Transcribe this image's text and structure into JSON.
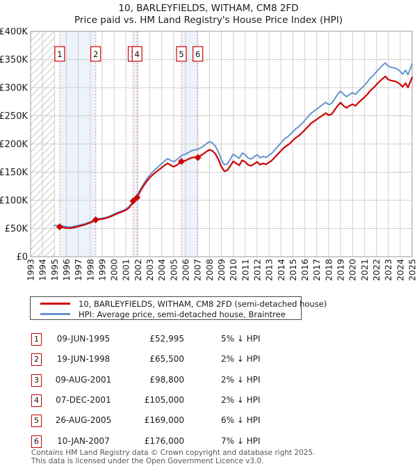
{
  "page": {
    "title": "10, BARLEYFIELDS, WITHAM, CM8 2FD",
    "subtitle": "Price paid vs. HM Land Registry's House Price Index (HPI)"
  },
  "colors": {
    "property_line": "#cc0000",
    "hpi_line": "#6694ce",
    "band_fill": "#edf2fb",
    "grid": "#cfcfcf",
    "plot_border": "#9a9a9a",
    "event_dash": "#e98585",
    "hatch": "#c9c9c9",
    "marker_box_border": "#cc0000"
  },
  "chart_data": {
    "type": "line",
    "title": "10, BARLEYFIELDS, WITHAM, CM8 2FD",
    "subtitle": "Price paid vs. HM Land Registry's House Price Index (HPI)",
    "x_axis": {
      "min": 1993,
      "max": 2025,
      "ticks": [
        1993,
        1994,
        1995,
        1996,
        1997,
        1998,
        1999,
        2000,
        2001,
        2002,
        2003,
        2004,
        2005,
        2006,
        2007,
        2008,
        2009,
        2010,
        2011,
        2012,
        2013,
        2014,
        2015,
        2016,
        2017,
        2018,
        2019,
        2020,
        2021,
        2022,
        2023,
        2024,
        2025
      ],
      "label_rotation": -90
    },
    "y_axis": {
      "min": 0,
      "max": 400,
      "unit": "thousand GBP",
      "tick_values": [
        0,
        50,
        100,
        150,
        200,
        250,
        300,
        350,
        400
      ],
      "tick_labels": [
        "£0",
        "£50K",
        "£100K",
        "£150K",
        "£200K",
        "£250K",
        "£300K",
        "£350K",
        "£400K"
      ]
    },
    "grid": true,
    "legend_position": "below-chart",
    "hatch_region": {
      "from": 1993,
      "to": 1995.05
    },
    "shaded_bands": [
      [
        1995.44,
        1998.46
      ],
      [
        2001.6,
        2001.93
      ],
      [
        2005.65,
        2007.03
      ]
    ],
    "event_lines": [
      1995.44,
      1998.46,
      2001.6,
      2001.93,
      2005.65,
      2007.03
    ],
    "sale_markers": [
      {
        "num": "1",
        "year": 1995.44,
        "value": 53.0
      },
      {
        "num": "2",
        "year": 1998.46,
        "value": 65.5
      },
      {
        "num": "3",
        "year": 2001.6,
        "value": 98.8
      },
      {
        "num": "4",
        "year": 2001.93,
        "value": 105.0
      },
      {
        "num": "5",
        "year": 2005.65,
        "value": 169.0
      },
      {
        "num": "6",
        "year": 2007.03,
        "value": 176.0
      }
    ],
    "series": [
      {
        "name": "HPI: Average price, semi-detached house, Braintree",
        "color": "#6694ce",
        "width": 2,
        "points": [
          [
            1995.0,
            55.5
          ],
          [
            1995.25,
            55.0
          ],
          [
            1995.5,
            55.8
          ],
          [
            1995.75,
            54.2
          ],
          [
            1996.0,
            53.3
          ],
          [
            1996.25,
            52.6
          ],
          [
            1996.5,
            53.2
          ],
          [
            1996.75,
            54.3
          ],
          [
            1997.0,
            55.5
          ],
          [
            1997.25,
            56.8
          ],
          [
            1997.5,
            58.2
          ],
          [
            1997.75,
            60.0
          ],
          [
            1998.0,
            61.8
          ],
          [
            1998.25,
            64.0
          ],
          [
            1998.5,
            66.8
          ],
          [
            1998.75,
            67.6
          ],
          [
            1999.0,
            68.2
          ],
          [
            1999.25,
            69.3
          ],
          [
            1999.5,
            71.0
          ],
          [
            1999.75,
            73.0
          ],
          [
            2000.0,
            75.5
          ],
          [
            2000.25,
            78.0
          ],
          [
            2000.5,
            80.0
          ],
          [
            2000.75,
            82.0
          ],
          [
            2001.0,
            84.5
          ],
          [
            2001.25,
            88.5
          ],
          [
            2001.5,
            95.0
          ],
          [
            2001.75,
            104.0
          ],
          [
            2002.0,
            112.0
          ],
          [
            2002.25,
            121.0
          ],
          [
            2002.5,
            130.0
          ],
          [
            2002.75,
            138.0
          ],
          [
            2003.0,
            145.0
          ],
          [
            2003.25,
            150.5
          ],
          [
            2003.5,
            155.5
          ],
          [
            2003.75,
            160.5
          ],
          [
            2004.0,
            165.0
          ],
          [
            2004.25,
            170.0
          ],
          [
            2004.5,
            174.0
          ],
          [
            2004.75,
            171.0
          ],
          [
            2005.0,
            168.5
          ],
          [
            2005.25,
            172.0
          ],
          [
            2005.5,
            176.5
          ],
          [
            2005.75,
            180.5
          ],
          [
            2006.0,
            182.0
          ],
          [
            2006.25,
            185.0
          ],
          [
            2006.5,
            188.0
          ],
          [
            2006.75,
            189.5
          ],
          [
            2007.0,
            190.5
          ],
          [
            2007.25,
            193.0
          ],
          [
            2007.5,
            196.0
          ],
          [
            2007.75,
            200.5
          ],
          [
            2008.0,
            204.0
          ],
          [
            2008.25,
            202.0
          ],
          [
            2008.5,
            196.0
          ],
          [
            2008.75,
            186.0
          ],
          [
            2009.0,
            172.0
          ],
          [
            2009.25,
            163.0
          ],
          [
            2009.5,
            165.0
          ],
          [
            2009.75,
            173.0
          ],
          [
            2010.0,
            182.0
          ],
          [
            2010.25,
            178.0
          ],
          [
            2010.5,
            174.5
          ],
          [
            2010.75,
            184.0
          ],
          [
            2011.0,
            181.0
          ],
          [
            2011.25,
            175.0
          ],
          [
            2011.5,
            173.5
          ],
          [
            2011.75,
            177.0
          ],
          [
            2012.0,
            181.0
          ],
          [
            2012.25,
            175.5
          ],
          [
            2012.5,
            178.0
          ],
          [
            2012.75,
            176.0
          ],
          [
            2013.0,
            180.0
          ],
          [
            2013.25,
            184.0
          ],
          [
            2013.5,
            190.0
          ],
          [
            2013.75,
            196.0
          ],
          [
            2014.0,
            202.0
          ],
          [
            2014.25,
            208.0
          ],
          [
            2014.5,
            212.0
          ],
          [
            2014.75,
            216.0
          ],
          [
            2015.0,
            222.0
          ],
          [
            2015.25,
            227.0
          ],
          [
            2015.5,
            231.0
          ],
          [
            2015.75,
            236.0
          ],
          [
            2016.0,
            242.0
          ],
          [
            2016.25,
            248.0
          ],
          [
            2016.5,
            254.0
          ],
          [
            2016.75,
            258.0
          ],
          [
            2017.0,
            262.0
          ],
          [
            2017.25,
            266.0
          ],
          [
            2017.5,
            270.0
          ],
          [
            2017.75,
            274.0
          ],
          [
            2018.0,
            270.0
          ],
          [
            2018.25,
            272.0
          ],
          [
            2018.5,
            280.0
          ],
          [
            2018.75,
            288.0
          ],
          [
            2019.0,
            294.0
          ],
          [
            2019.25,
            288.0
          ],
          [
            2019.5,
            284.0
          ],
          [
            2019.75,
            288.0
          ],
          [
            2020.0,
            291.0
          ],
          [
            2020.25,
            288.0
          ],
          [
            2020.5,
            294.0
          ],
          [
            2020.75,
            299.0
          ],
          [
            2021.0,
            304.0
          ],
          [
            2021.25,
            310.0
          ],
          [
            2021.5,
            317.0
          ],
          [
            2021.75,
            322.0
          ],
          [
            2022.0,
            328.0
          ],
          [
            2022.25,
            334.0
          ],
          [
            2022.5,
            339.0
          ],
          [
            2022.75,
            344.0
          ],
          [
            2023.0,
            338.0
          ],
          [
            2023.25,
            336.0
          ],
          [
            2023.5,
            335.0
          ],
          [
            2023.75,
            333.0
          ],
          [
            2024.0,
            329.0
          ],
          [
            2024.2,
            324.0
          ],
          [
            2024.45,
            331.0
          ],
          [
            2024.65,
            323.0
          ],
          [
            2025.0,
            342.0
          ]
        ]
      },
      {
        "name": "10, BARLEYFIELDS, WITHAM, CM8 2FD (semi-detached house)",
        "color": "#cc0000",
        "width": 2.2,
        "points": [
          [
            1995.25,
            52.3
          ],
          [
            1995.44,
            53.0
          ],
          [
            1995.5,
            53.0
          ],
          [
            1995.75,
            51.7
          ],
          [
            1996.0,
            50.9
          ],
          [
            1996.25,
            50.4
          ],
          [
            1996.5,
            51.1
          ],
          [
            1996.75,
            52.3
          ],
          [
            1997.0,
            53.6
          ],
          [
            1997.25,
            55.0
          ],
          [
            1997.5,
            56.5
          ],
          [
            1997.75,
            58.4
          ],
          [
            1998.0,
            60.3
          ],
          [
            1998.25,
            62.6
          ],
          [
            1998.46,
            65.5
          ],
          [
            1998.75,
            66.2
          ],
          [
            1999.0,
            66.8
          ],
          [
            1999.25,
            67.9
          ],
          [
            1999.5,
            69.6
          ],
          [
            1999.75,
            71.5
          ],
          [
            2000.0,
            74.0
          ],
          [
            2000.25,
            76.4
          ],
          [
            2000.5,
            78.4
          ],
          [
            2000.75,
            80.4
          ],
          [
            2001.0,
            82.8
          ],
          [
            2001.25,
            86.7
          ],
          [
            2001.5,
            93.1
          ],
          [
            2001.6,
            98.8
          ],
          [
            2001.75,
            101.9
          ],
          [
            2001.93,
            105.0
          ],
          [
            2002.25,
            118.2
          ],
          [
            2002.5,
            126.6
          ],
          [
            2002.75,
            134.0
          ],
          [
            2003.0,
            140.4
          ],
          [
            2003.25,
            145.4
          ],
          [
            2003.5,
            149.8
          ],
          [
            2003.75,
            154.1
          ],
          [
            2004.0,
            158.0
          ],
          [
            2004.25,
            162.4
          ],
          [
            2004.5,
            165.7
          ],
          [
            2004.75,
            162.4
          ],
          [
            2005.0,
            159.6
          ],
          [
            2005.25,
            162.4
          ],
          [
            2005.5,
            166.2
          ],
          [
            2005.65,
            169.0
          ],
          [
            2005.75,
            169.5
          ],
          [
            2006.0,
            170.6
          ],
          [
            2006.25,
            173.1
          ],
          [
            2006.5,
            175.6
          ],
          [
            2006.75,
            176.6
          ],
          [
            2007.03,
            176.0
          ],
          [
            2007.25,
            179.5
          ],
          [
            2007.5,
            182.3
          ],
          [
            2007.75,
            186.5
          ],
          [
            2008.0,
            189.7
          ],
          [
            2008.25,
            187.9
          ],
          [
            2008.5,
            182.3
          ],
          [
            2008.75,
            173.0
          ],
          [
            2009.0,
            160.0
          ],
          [
            2009.25,
            151.6
          ],
          [
            2009.5,
            153.5
          ],
          [
            2009.75,
            160.9
          ],
          [
            2010.0,
            169.3
          ],
          [
            2010.25,
            165.5
          ],
          [
            2010.5,
            162.3
          ],
          [
            2010.75,
            171.1
          ],
          [
            2011.0,
            168.3
          ],
          [
            2011.25,
            162.8
          ],
          [
            2011.5,
            161.4
          ],
          [
            2011.75,
            164.6
          ],
          [
            2012.0,
            168.3
          ],
          [
            2012.25,
            163.2
          ],
          [
            2012.5,
            165.5
          ],
          [
            2012.75,
            163.7
          ],
          [
            2013.0,
            167.4
          ],
          [
            2013.25,
            171.1
          ],
          [
            2013.5,
            176.7
          ],
          [
            2013.75,
            182.3
          ],
          [
            2014.0,
            187.9
          ],
          [
            2014.25,
            193.4
          ],
          [
            2014.5,
            197.2
          ],
          [
            2014.75,
            200.9
          ],
          [
            2015.0,
            206.5
          ],
          [
            2015.25,
            211.1
          ],
          [
            2015.5,
            214.8
          ],
          [
            2015.75,
            219.5
          ],
          [
            2016.0,
            225.1
          ],
          [
            2016.25,
            230.6
          ],
          [
            2016.5,
            236.2
          ],
          [
            2016.75,
            239.9
          ],
          [
            2017.0,
            243.7
          ],
          [
            2017.25,
            247.4
          ],
          [
            2017.5,
            251.1
          ],
          [
            2017.75,
            254.8
          ],
          [
            2018.0,
            251.1
          ],
          [
            2018.25,
            253.0
          ],
          [
            2018.5,
            260.4
          ],
          [
            2018.75,
            267.8
          ],
          [
            2019.0,
            273.4
          ],
          [
            2019.25,
            267.8
          ],
          [
            2019.5,
            264.1
          ],
          [
            2019.75,
            267.8
          ],
          [
            2020.0,
            270.6
          ],
          [
            2020.25,
            267.8
          ],
          [
            2020.5,
            273.4
          ],
          [
            2020.75,
            278.1
          ],
          [
            2021.0,
            282.7
          ],
          [
            2021.25,
            288.3
          ],
          [
            2021.5,
            294.8
          ],
          [
            2021.75,
            299.5
          ],
          [
            2022.0,
            305.0
          ],
          [
            2022.25,
            310.6
          ],
          [
            2022.5,
            315.3
          ],
          [
            2022.75,
            320.0
          ],
          [
            2023.0,
            314.3
          ],
          [
            2023.25,
            312.5
          ],
          [
            2023.5,
            311.6
          ],
          [
            2023.75,
            309.7
          ],
          [
            2024.0,
            306.0
          ],
          [
            2024.2,
            301.3
          ],
          [
            2024.45,
            308.0
          ],
          [
            2024.65,
            300.4
          ],
          [
            2025.0,
            318.0
          ]
        ]
      }
    ]
  },
  "legend": {
    "items": [
      {
        "label": "10, BARLEYFIELDS, WITHAM, CM8 2FD (semi-detached house)",
        "color": "#cc0000"
      },
      {
        "label": "HPI: Average price, semi-detached house, Braintree",
        "color": "#6694ce"
      }
    ]
  },
  "table": {
    "rows": [
      {
        "num": "1",
        "date": "09-JUN-1995",
        "price": "£52,995",
        "hpi": "5% ↓ HPI"
      },
      {
        "num": "2",
        "date": "19-JUN-1998",
        "price": "£65,500",
        "hpi": "2% ↓ HPI"
      },
      {
        "num": "3",
        "date": "09-AUG-2001",
        "price": "£98,800",
        "hpi": "2% ↓ HPI"
      },
      {
        "num": "4",
        "date": "07-DEC-2001",
        "price": "£105,000",
        "hpi": "2% ↓ HPI"
      },
      {
        "num": "5",
        "date": "26-AUG-2005",
        "price": "£169,000",
        "hpi": "6% ↓ HPI"
      },
      {
        "num": "6",
        "date": "10-JAN-2007",
        "price": "£176,000",
        "hpi": "7% ↓ HPI"
      }
    ]
  },
  "footer": {
    "line1": "Contains HM Land Registry data © Crown copyright and database right 2025.",
    "line2": "This data is licensed under the Open Government Licence v3.0."
  }
}
